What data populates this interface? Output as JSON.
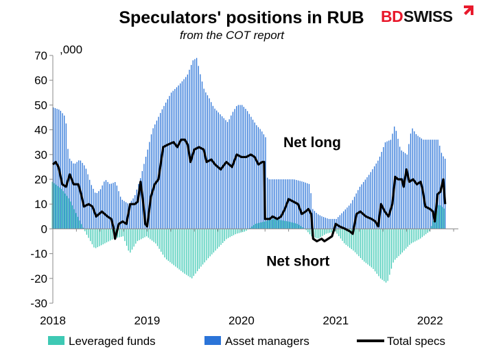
{
  "title": "Speculators' positions in RUB",
  "subtitle": "from the COT report",
  "logo": {
    "text_bd": "BD",
    "text_swiss": "SWISS",
    "bd_color": "#e8192c",
    "swiss_color": "#111111"
  },
  "colors": {
    "leveraged": "#3ec9b4",
    "asset": "#2b74d8",
    "total": "#000000"
  },
  "chart_data": {
    "type": "bar",
    "title": "Speculators' positions in RUB",
    "subtitle": "from the COT report",
    "unit_label": ",000",
    "ylim": [
      -30,
      70
    ],
    "yticks": [
      -30,
      -20,
      -10,
      0,
      10,
      20,
      30,
      40,
      50,
      60,
      70
    ],
    "xlim": [
      2018.0,
      2022.3
    ],
    "xticks": [
      {
        "label": "2018",
        "value": 2018.0
      },
      {
        "label": "2019",
        "value": 2019.0
      },
      {
        "label": "2020",
        "value": 2020.0
      },
      {
        "label": "2021",
        "value": 2021.0
      },
      {
        "label": "2022",
        "value": 2022.0
      }
    ],
    "grid": false,
    "legend_position": "bottom",
    "annotations": [
      {
        "text": "Net long",
        "x": 2020.75,
        "y": 33
      },
      {
        "text": "Net short",
        "x": 2020.6,
        "y": -15
      }
    ],
    "series": [
      {
        "name": "Leveraged funds",
        "kind": "bar",
        "color": "#3ec9b4",
        "keypoints": [
          [
            2018.0,
            19
          ],
          [
            2018.1,
            16
          ],
          [
            2018.18,
            12
          ],
          [
            2018.28,
            4
          ],
          [
            2018.36,
            -2
          ],
          [
            2018.45,
            -8
          ],
          [
            2018.55,
            -6
          ],
          [
            2018.65,
            -4
          ],
          [
            2018.75,
            -3
          ],
          [
            2018.82,
            -10
          ],
          [
            2018.9,
            -5
          ],
          [
            2019.0,
            -3
          ],
          [
            2019.1,
            -6
          ],
          [
            2019.2,
            -12
          ],
          [
            2019.3,
            -15
          ],
          [
            2019.4,
            -18
          ],
          [
            2019.48,
            -20
          ],
          [
            2019.56,
            -16
          ],
          [
            2019.65,
            -12
          ],
          [
            2019.75,
            -8
          ],
          [
            2019.85,
            -4
          ],
          [
            2019.95,
            -2
          ],
          [
            2020.05,
            -1
          ],
          [
            2020.15,
            2
          ],
          [
            2020.25,
            3
          ],
          [
            2020.35,
            4
          ],
          [
            2020.5,
            3
          ],
          [
            2020.6,
            2
          ],
          [
            2020.68,
            0
          ],
          [
            2020.75,
            -3
          ],
          [
            2020.82,
            -4
          ],
          [
            2020.9,
            -2
          ],
          [
            2021.0,
            -1
          ],
          [
            2021.1,
            -6
          ],
          [
            2021.2,
            -9
          ],
          [
            2021.3,
            -13
          ],
          [
            2021.4,
            -16
          ],
          [
            2021.48,
            -20
          ],
          [
            2021.55,
            -22
          ],
          [
            2021.62,
            -13
          ],
          [
            2021.7,
            -10
          ],
          [
            2021.8,
            -6
          ],
          [
            2021.9,
            -4
          ],
          [
            2022.0,
            -1
          ],
          [
            2022.1,
            10
          ],
          [
            2022.16,
            8
          ]
        ]
      },
      {
        "name": "Asset managers",
        "kind": "bar",
        "color": "#2b74d8",
        "keypoints": [
          [
            2018.0,
            49
          ],
          [
            2018.07,
            48
          ],
          [
            2018.13,
            45
          ],
          [
            2018.16,
            29
          ],
          [
            2018.22,
            26
          ],
          [
            2018.28,
            28
          ],
          [
            2018.34,
            25
          ],
          [
            2018.4,
            18
          ],
          [
            2018.45,
            14
          ],
          [
            2018.5,
            16
          ],
          [
            2018.55,
            20
          ],
          [
            2018.6,
            18
          ],
          [
            2018.66,
            19
          ],
          [
            2018.72,
            12
          ],
          [
            2018.8,
            10
          ],
          [
            2018.86,
            13
          ],
          [
            2018.92,
            20
          ],
          [
            2019.0,
            32
          ],
          [
            2019.05,
            40
          ],
          [
            2019.15,
            48
          ],
          [
            2019.25,
            55
          ],
          [
            2019.33,
            58
          ],
          [
            2019.42,
            62
          ],
          [
            2019.48,
            68
          ],
          [
            2019.52,
            69
          ],
          [
            2019.56,
            62
          ],
          [
            2019.6,
            56
          ],
          [
            2019.65,
            53
          ],
          [
            2019.7,
            49
          ],
          [
            2019.75,
            47
          ],
          [
            2019.8,
            45
          ],
          [
            2019.85,
            43
          ],
          [
            2019.9,
            47
          ],
          [
            2019.95,
            50
          ],
          [
            2020.0,
            50
          ],
          [
            2020.05,
            48
          ],
          [
            2020.1,
            45
          ],
          [
            2020.15,
            42
          ],
          [
            2020.2,
            40
          ],
          [
            2020.25,
            37
          ],
          [
            2020.27,
            20
          ],
          [
            2020.4,
            20
          ],
          [
            2020.55,
            20
          ],
          [
            2020.65,
            19
          ],
          [
            2020.72,
            18
          ],
          [
            2020.75,
            8
          ],
          [
            2020.8,
            6
          ],
          [
            2020.85,
            5
          ],
          [
            2020.92,
            4
          ],
          [
            2021.0,
            4
          ],
          [
            2021.05,
            6
          ],
          [
            2021.15,
            10
          ],
          [
            2021.25,
            17
          ],
          [
            2021.35,
            22
          ],
          [
            2021.45,
            28
          ],
          [
            2021.52,
            35
          ],
          [
            2021.58,
            36
          ],
          [
            2021.62,
            42
          ],
          [
            2021.68,
            32
          ],
          [
            2021.75,
            30
          ],
          [
            2021.8,
            41
          ],
          [
            2021.85,
            38
          ],
          [
            2021.92,
            36
          ],
          [
            2022.0,
            36
          ],
          [
            2022.08,
            36
          ],
          [
            2022.12,
            30
          ],
          [
            2022.16,
            28
          ]
        ]
      },
      {
        "name": "Total specs",
        "kind": "line",
        "color": "#000000",
        "keypoints": [
          [
            2018.0,
            26
          ],
          [
            2018.03,
            27
          ],
          [
            2018.06,
            25
          ],
          [
            2018.1,
            18
          ],
          [
            2018.14,
            17
          ],
          [
            2018.18,
            22
          ],
          [
            2018.22,
            18
          ],
          [
            2018.27,
            18
          ],
          [
            2018.3,
            14
          ],
          [
            2018.33,
            9
          ],
          [
            2018.38,
            10
          ],
          [
            2018.42,
            9
          ],
          [
            2018.46,
            5
          ],
          [
            2018.52,
            7
          ],
          [
            2018.58,
            5
          ],
          [
            2018.62,
            4
          ],
          [
            2018.64,
            1
          ],
          [
            2018.66,
            -4
          ],
          [
            2018.7,
            2
          ],
          [
            2018.74,
            3
          ],
          [
            2018.78,
            2
          ],
          [
            2018.82,
            10
          ],
          [
            2018.87,
            10
          ],
          [
            2018.9,
            11
          ],
          [
            2018.93,
            19
          ],
          [
            2018.96,
            10
          ],
          [
            2018.98,
            2
          ],
          [
            2019.0,
            1
          ],
          [
            2019.04,
            13
          ],
          [
            2019.08,
            18
          ],
          [
            2019.12,
            20
          ],
          [
            2019.17,
            33
          ],
          [
            2019.22,
            34
          ],
          [
            2019.28,
            35
          ],
          [
            2019.32,
            33
          ],
          [
            2019.36,
            36
          ],
          [
            2019.4,
            36
          ],
          [
            2019.43,
            34
          ],
          [
            2019.46,
            27
          ],
          [
            2019.5,
            32
          ],
          [
            2019.55,
            33
          ],
          [
            2019.6,
            32
          ],
          [
            2019.63,
            27
          ],
          [
            2019.68,
            28
          ],
          [
            2019.72,
            26
          ],
          [
            2019.78,
            24
          ],
          [
            2019.84,
            27
          ],
          [
            2019.9,
            25
          ],
          [
            2019.95,
            30
          ],
          [
            2020.0,
            29
          ],
          [
            2020.05,
            29
          ],
          [
            2020.1,
            30
          ],
          [
            2020.14,
            29
          ],
          [
            2020.18,
            26
          ],
          [
            2020.22,
            27
          ],
          [
            2020.24,
            27
          ],
          [
            2020.25,
            4
          ],
          [
            2020.3,
            4
          ],
          [
            2020.33,
            5
          ],
          [
            2020.38,
            4
          ],
          [
            2020.42,
            5
          ],
          [
            2020.46,
            8
          ],
          [
            2020.5,
            12
          ],
          [
            2020.55,
            11
          ],
          [
            2020.6,
            10
          ],
          [
            2020.64,
            6
          ],
          [
            2020.68,
            7
          ],
          [
            2020.71,
            8
          ],
          [
            2020.74,
            6
          ],
          [
            2020.76,
            -4
          ],
          [
            2020.8,
            -5
          ],
          [
            2020.85,
            -4
          ],
          [
            2020.88,
            -5
          ],
          [
            2020.92,
            -4
          ],
          [
            2020.96,
            -3
          ],
          [
            2021.0,
            2
          ],
          [
            2021.04,
            1
          ],
          [
            2021.1,
            0
          ],
          [
            2021.15,
            -1
          ],
          [
            2021.18,
            -2
          ],
          [
            2021.22,
            6
          ],
          [
            2021.26,
            7
          ],
          [
            2021.32,
            5
          ],
          [
            2021.38,
            4
          ],
          [
            2021.42,
            3
          ],
          [
            2021.45,
            1
          ],
          [
            2021.48,
            10
          ],
          [
            2021.52,
            7
          ],
          [
            2021.56,
            5
          ],
          [
            2021.6,
            10
          ],
          [
            2021.63,
            21
          ],
          [
            2021.66,
            20
          ],
          [
            2021.7,
            20
          ],
          [
            2021.72,
            17
          ],
          [
            2021.75,
            24
          ],
          [
            2021.78,
            19
          ],
          [
            2021.82,
            20
          ],
          [
            2021.86,
            18
          ],
          [
            2021.9,
            19
          ],
          [
            2021.92,
            16
          ],
          [
            2021.95,
            9
          ],
          [
            2022.0,
            8
          ],
          [
            2022.03,
            7
          ],
          [
            2022.05,
            3
          ],
          [
            2022.08,
            14
          ],
          [
            2022.11,
            15
          ],
          [
            2022.14,
            20
          ],
          [
            2022.16,
            10
          ]
        ]
      }
    ]
  }
}
